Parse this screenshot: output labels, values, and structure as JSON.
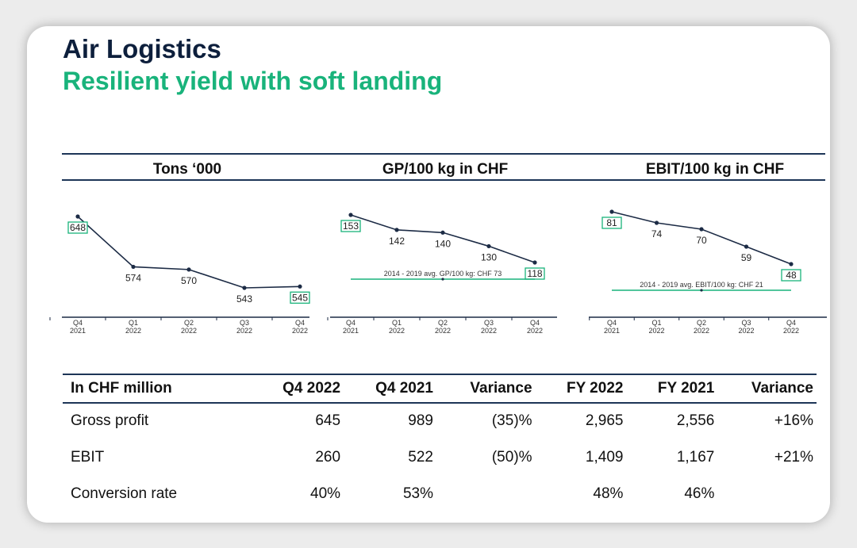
{
  "header": {
    "title": "Air Logistics",
    "subtitle": "Resilient yield with soft landing"
  },
  "colors": {
    "navy": "#0d1f3c",
    "green": "#19b37b",
    "line": "#1d3557"
  },
  "chart_data": [
    {
      "type": "line",
      "title": "Tons ‘000",
      "categories": [
        [
          "Q4",
          "2021"
        ],
        [
          "Q1",
          "2022"
        ],
        [
          "Q2",
          "2022"
        ],
        [
          "Q3",
          "2022"
        ],
        [
          "Q4",
          "2022"
        ]
      ],
      "values": [
        648,
        574,
        570,
        543,
        545
      ],
      "data_labels": [
        "648",
        "574",
        "570",
        "543",
        "545"
      ],
      "highlighted": [
        0,
        4
      ],
      "ylim": [
        400,
        780
      ]
    },
    {
      "type": "line",
      "title": "GP/100 kg in CHF",
      "categories": [
        [
          "Q4",
          "2021"
        ],
        [
          "Q1",
          "2022"
        ],
        [
          "Q2",
          "2022"
        ],
        [
          "Q3",
          "2022"
        ],
        [
          "Q4",
          "2022"
        ]
      ],
      "values": [
        153,
        142,
        140,
        130,
        118
      ],
      "data_labels": [
        "153",
        "142",
        "140",
        "130",
        "118"
      ],
      "highlighted": [
        0,
        4
      ],
      "reference_label": "2014 - 2019 avg. GP/100 kg: CHF 73",
      "ylim": [
        20,
        180
      ]
    },
    {
      "type": "line",
      "title": "EBIT/100 kg in CHF",
      "categories": [
        [
          "Q4",
          "2021"
        ],
        [
          "Q1",
          "2022"
        ],
        [
          "Q2",
          "2022"
        ],
        [
          "Q3",
          "2022"
        ],
        [
          "Q4",
          "2022"
        ]
      ],
      "values": [
        81,
        74,
        70,
        59,
        48
      ],
      "data_labels": [
        "81",
        "74",
        "70",
        "59",
        "48"
      ],
      "highlighted": [
        0,
        4
      ],
      "reference_label": "2014 - 2019 avg. EBIT/100 kg: CHF 21",
      "ylim": [
        0,
        90
      ]
    }
  ],
  "table": {
    "columns": [
      "In CHF million",
      "Q4 2022",
      "Q4 2021",
      "Variance",
      "FY 2022",
      "FY 2021",
      "Variance"
    ],
    "rows": [
      {
        "label": "Gross profit",
        "cells": [
          "645",
          "989",
          "(35)%",
          "2,965",
          "2,556",
          "+16%"
        ]
      },
      {
        "label": "EBIT",
        "cells": [
          "260",
          "522",
          "(50)%",
          "1,409",
          "1,167",
          "+21%"
        ]
      },
      {
        "label": "Conversion rate",
        "cells": [
          "40%",
          "53%",
          "",
          "48%",
          "46%",
          ""
        ]
      }
    ]
  }
}
